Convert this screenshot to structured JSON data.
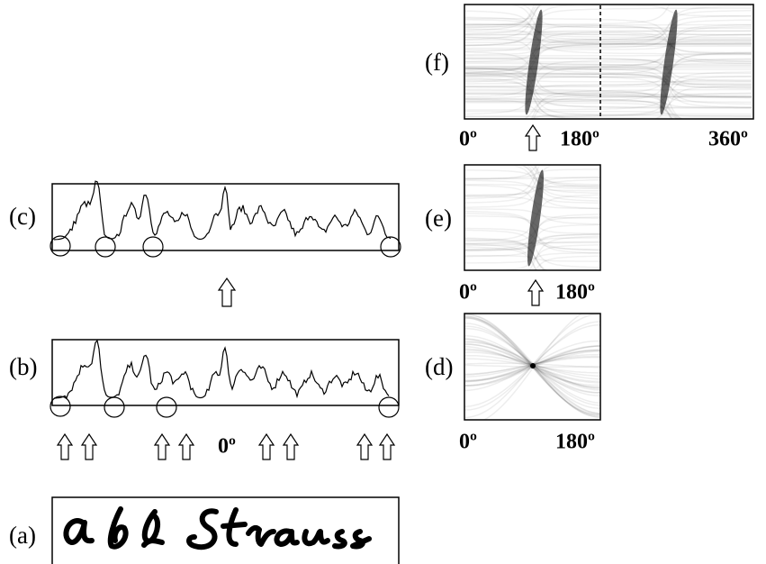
{
  "panels": {
    "a": {
      "label": "(a)"
    },
    "b": {
      "label": "(b)",
      "axis_label": "0º"
    },
    "c": {
      "label": "(c)"
    },
    "d": {
      "label": "(d)",
      "axis_start": "0º",
      "axis_end": "180º"
    },
    "e": {
      "label": "(e)",
      "axis_start": "0º",
      "axis_end": "180º"
    },
    "f": {
      "label": "(f)",
      "axis_start": "0º",
      "axis_mid": "180º",
      "axis_end": "360º"
    }
  }
}
